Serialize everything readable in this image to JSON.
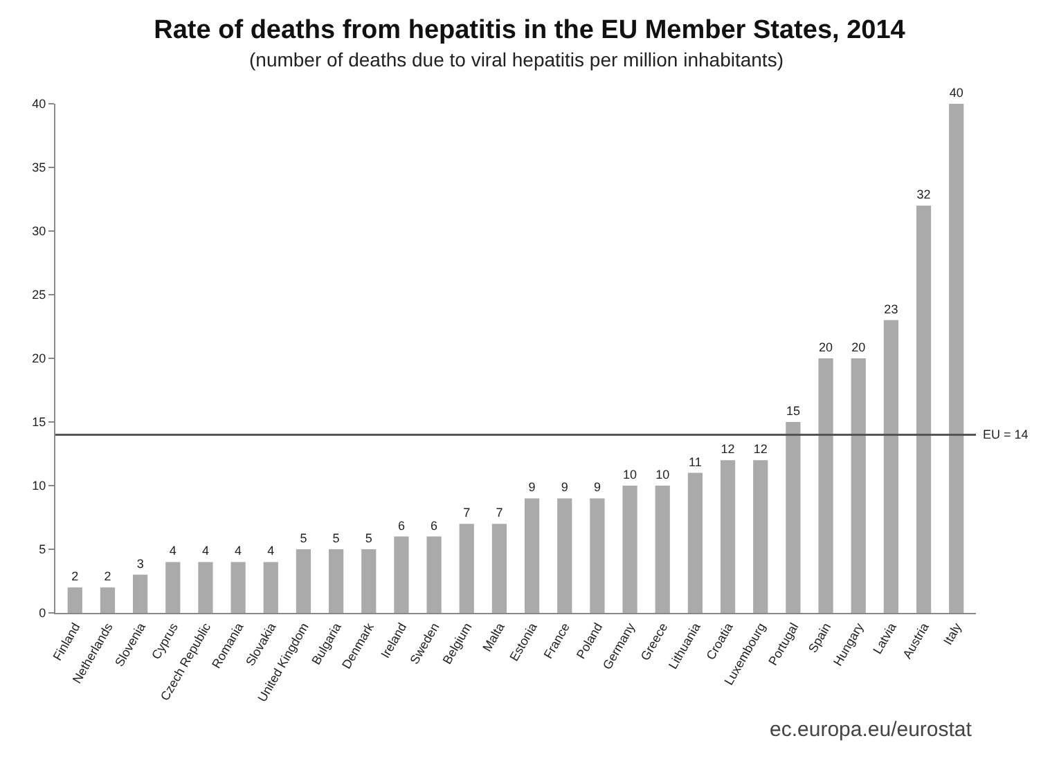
{
  "chart_data": {
    "type": "bar",
    "title": "Rate of deaths from hepatitis in the EU Member States, 2014",
    "subtitle": "(number of deaths due to viral hepatitis per million inhabitants)",
    "categories": [
      "Finland",
      "Netherlands",
      "Slovenia",
      "Cyprus",
      "Czech Republic",
      "Romania",
      "Slovakia",
      "United Kingdom",
      "Bulgaria",
      "Denmark",
      "Ireland",
      "Sweden",
      "Belgium",
      "Malta",
      "Estonia",
      "France",
      "Poland",
      "Germany",
      "Greece",
      "Lithuania",
      "Croatia",
      "Luxembourg",
      "Portugal",
      "Spain",
      "Hungary",
      "Latvia",
      "Austria",
      "Italy"
    ],
    "values": [
      2,
      2,
      3,
      4,
      4,
      4,
      4,
      5,
      5,
      5,
      6,
      6,
      7,
      7,
      9,
      9,
      9,
      10,
      10,
      11,
      12,
      12,
      15,
      20,
      20,
      23,
      32,
      40
    ],
    "color": "#aaaaaa",
    "ylim": [
      0,
      40
    ],
    "yticks": [
      0,
      5,
      10,
      15,
      20,
      25,
      30,
      35,
      40
    ],
    "grid": false,
    "data_labels": true,
    "ref_lines": [
      {
        "axis": "y",
        "value": 14,
        "label": "EU = 14",
        "color": "#555555"
      }
    ],
    "annotations": [
      "ec.europa.eu/eurostat"
    ]
  }
}
